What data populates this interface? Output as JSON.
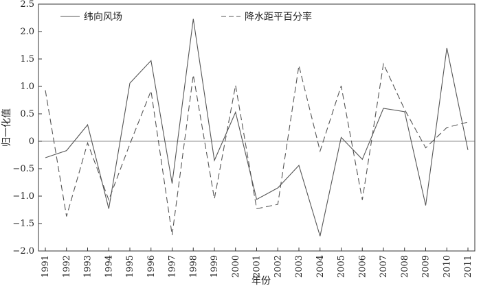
{
  "chart_data": {
    "type": "line",
    "xlabel": "年份",
    "ylabel": "归一化值",
    "ylim": [
      -2.0,
      2.5
    ],
    "yticks": [
      -2.0,
      -1.5,
      -1.0,
      -0.5,
      0,
      0.5,
      1.0,
      1.5,
      2.0,
      2.5
    ],
    "ytick_labels": [
      "−2.0",
      "−1.5",
      "−1.0",
      "−0.5",
      "0",
      "0.5",
      "1.0",
      "1.5",
      "2.0",
      "2.5"
    ],
    "x": [
      "1991",
      "1992",
      "1993",
      "1994",
      "1995",
      "1996",
      "1997",
      "1998",
      "1999",
      "2000",
      "2001",
      "2002",
      "2003",
      "2004",
      "2005",
      "2006",
      "2007",
      "2008",
      "2009",
      "2010",
      "2011"
    ],
    "legend_position": "top",
    "zero_line": true,
    "grid": false,
    "series": [
      {
        "name": "纬向风场",
        "style": "solid",
        "color": "#555555",
        "values": [
          -0.3,
          -0.17,
          0.3,
          -1.23,
          1.06,
          1.47,
          -0.77,
          2.23,
          -0.35,
          0.53,
          -1.06,
          -0.85,
          -0.44,
          -1.73,
          0.07,
          -0.33,
          0.6,
          0.54,
          -1.17,
          1.7,
          -0.16
        ]
      },
      {
        "name": "降水距平百分率",
        "style": "dashed",
        "color": "#555555",
        "values": [
          0.93,
          -1.37,
          -0.03,
          -1.07,
          -0.05,
          0.92,
          -1.71,
          1.21,
          -1.05,
          1.02,
          -1.23,
          -1.15,
          1.38,
          -0.18,
          1.01,
          -1.07,
          1.41,
          0.58,
          -0.12,
          0.25,
          0.35
        ]
      }
    ]
  }
}
